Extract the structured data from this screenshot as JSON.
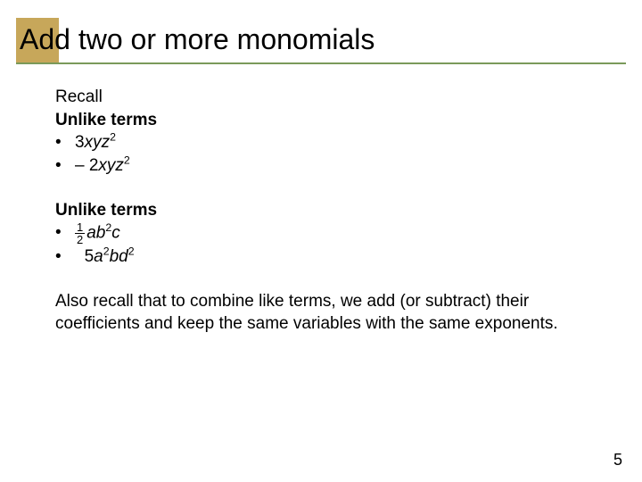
{
  "title": "Add two or more monomials",
  "styling": {
    "accent_color": "#c7a75a",
    "underline_color": "#7a9a5a",
    "bg_color": "#ffffff",
    "title_fontsize": 32,
    "body_fontsize": 19
  },
  "section1": {
    "lead": "Recall",
    "heading": "Unlike terms",
    "items": [
      {
        "coef": "3",
        "vars": "xyz",
        "exp": "2"
      },
      {
        "coef": "– 2",
        "vars": "xyz",
        "exp": "2"
      }
    ]
  },
  "section2": {
    "heading": "Unlike terms",
    "items": [
      {
        "frac_num": "1",
        "frac_den": "2",
        "term_html": "ab2c",
        "v1": "ab",
        "e1": "2",
        "v2": "c"
      },
      {
        "coef": "5",
        "v1": "a",
        "e1": "2",
        "v2": "bd",
        "e2": "2"
      }
    ]
  },
  "closing": "Also recall that to combine like terms, we add (or subtract) their coefficients and keep the same variables with the same exponents.",
  "page_number": "5"
}
